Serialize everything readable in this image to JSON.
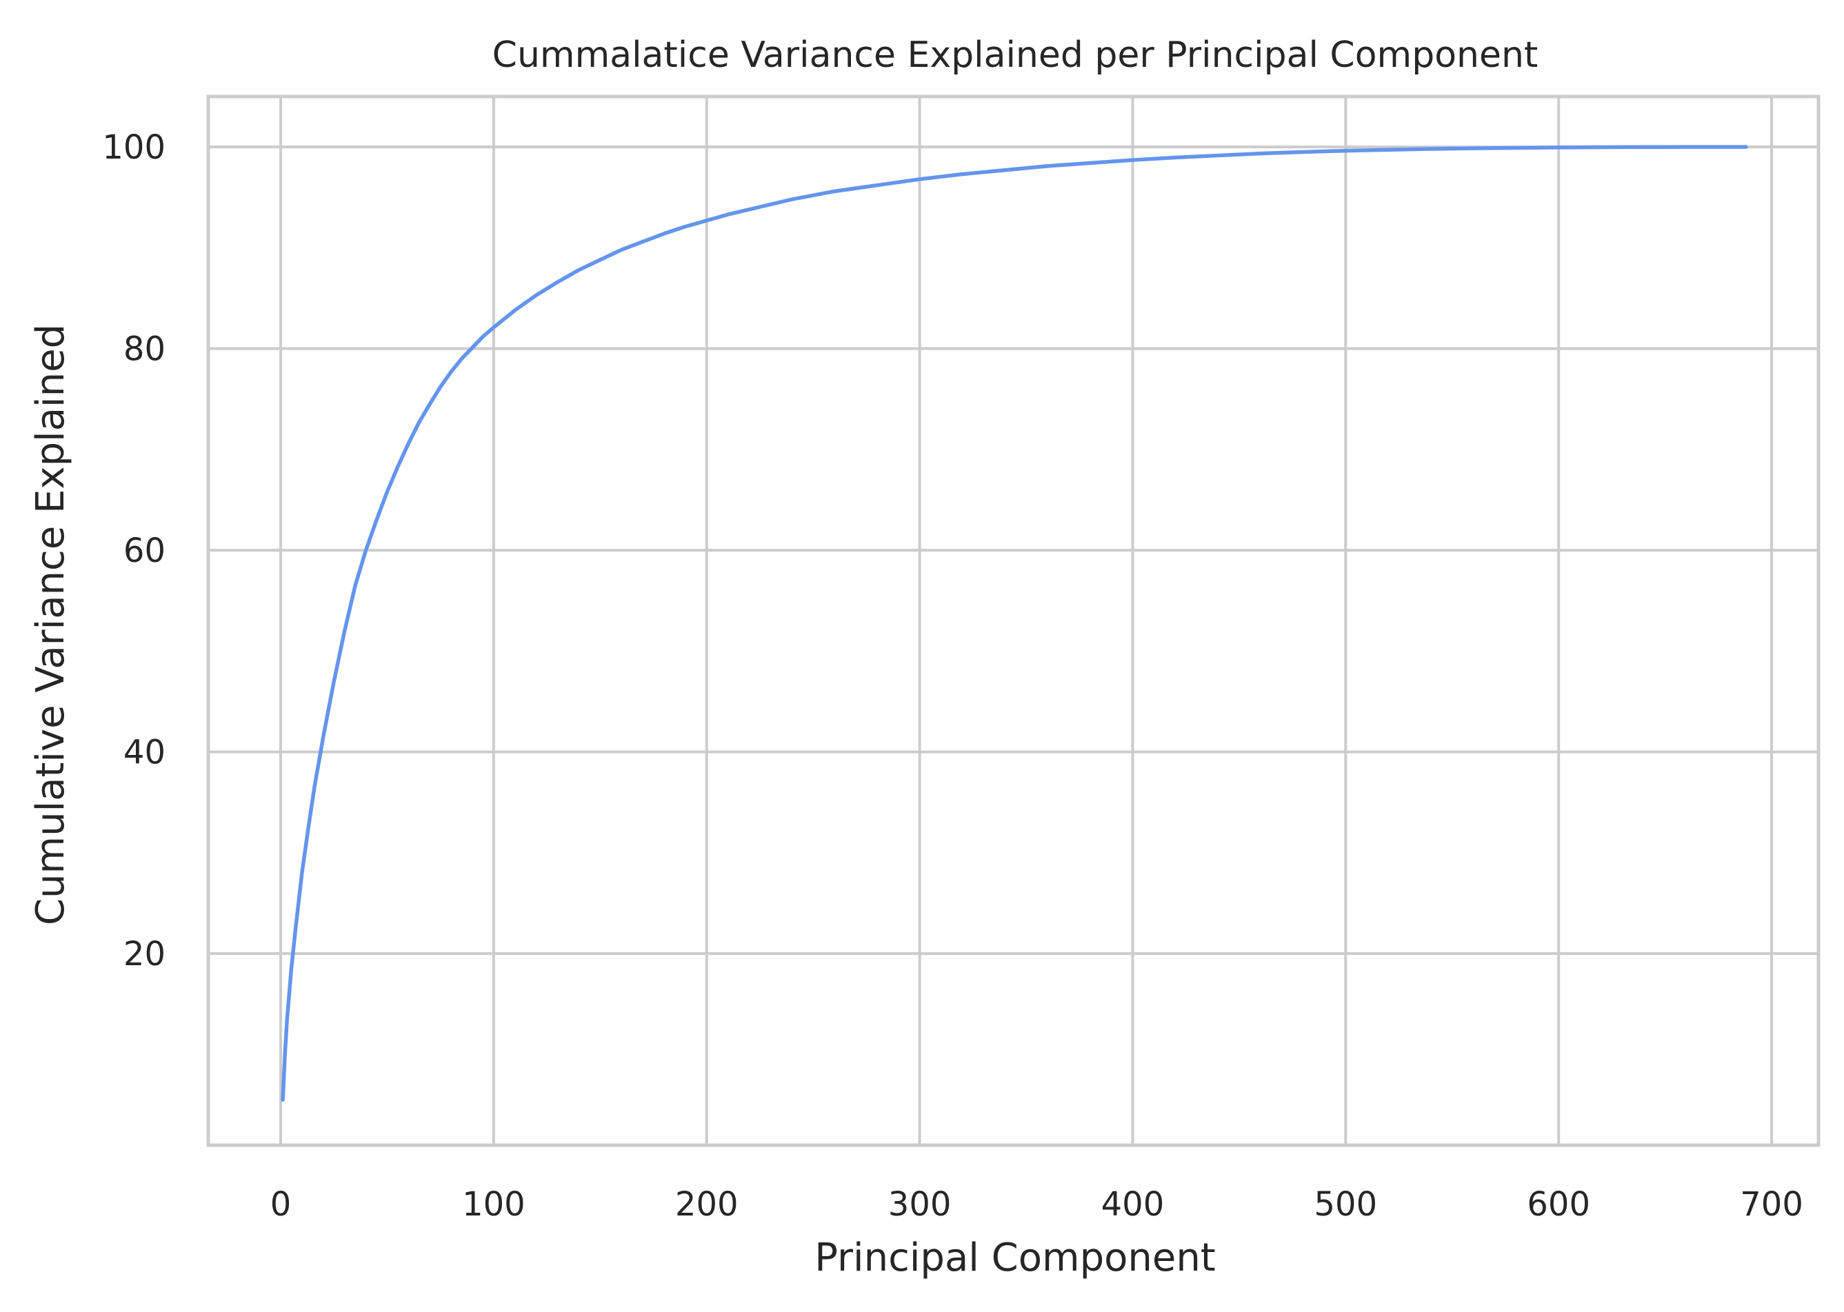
{
  "colors": {
    "line": "#6495ed",
    "grid": "#cccccc",
    "spine": "#cccccc",
    "text": "#262626",
    "background": "#ffffff"
  },
  "chart_data": {
    "type": "line",
    "title": "Cummalatice Variance Explained per Principal Component",
    "xlabel": "Principal Component",
    "ylabel": "Cumulative Variance Explained",
    "xlim": [
      -34,
      722
    ],
    "ylim": [
      1,
      105
    ],
    "xticks": [
      0,
      100,
      200,
      300,
      400,
      500,
      600,
      700
    ],
    "yticks": [
      20,
      40,
      60,
      80,
      100
    ],
    "grid": true,
    "legend": "none",
    "series": [
      {
        "x": [
          1,
          2,
          3,
          5,
          7,
          10,
          13,
          16,
          20,
          25,
          30,
          35,
          40,
          45,
          50,
          55,
          60,
          65,
          70,
          75,
          80,
          85,
          90,
          95,
          100,
          110,
          120,
          130,
          140,
          150,
          160,
          170,
          180,
          190,
          200,
          210,
          220,
          230,
          240,
          250,
          260,
          270,
          280,
          290,
          300,
          320,
          340,
          360,
          380,
          400,
          420,
          440,
          460,
          480,
          500,
          520,
          540,
          560,
          580,
          600,
          620,
          640,
          660,
          680,
          688
        ],
        "values": [
          5.5,
          10.0,
          13.5,
          18.5,
          22.5,
          28.0,
          32.5,
          36.7,
          41.5,
          47.0,
          52.0,
          56.5,
          60.0,
          63.0,
          65.8,
          68.3,
          70.6,
          72.7,
          74.5,
          76.2,
          77.7,
          79.0,
          80.1,
          81.2,
          82.1,
          83.8,
          85.3,
          86.6,
          87.8,
          88.8,
          89.8,
          90.6,
          91.4,
          92.1,
          92.7,
          93.3,
          93.8,
          94.3,
          94.8,
          95.2,
          95.6,
          95.9,
          96.2,
          96.5,
          96.8,
          97.3,
          97.7,
          98.1,
          98.4,
          98.7,
          98.95,
          99.15,
          99.35,
          99.5,
          99.62,
          99.72,
          99.8,
          99.86,
          99.91,
          99.95,
          99.97,
          99.99,
          100.0,
          100.0,
          100.0
        ]
      }
    ]
  }
}
